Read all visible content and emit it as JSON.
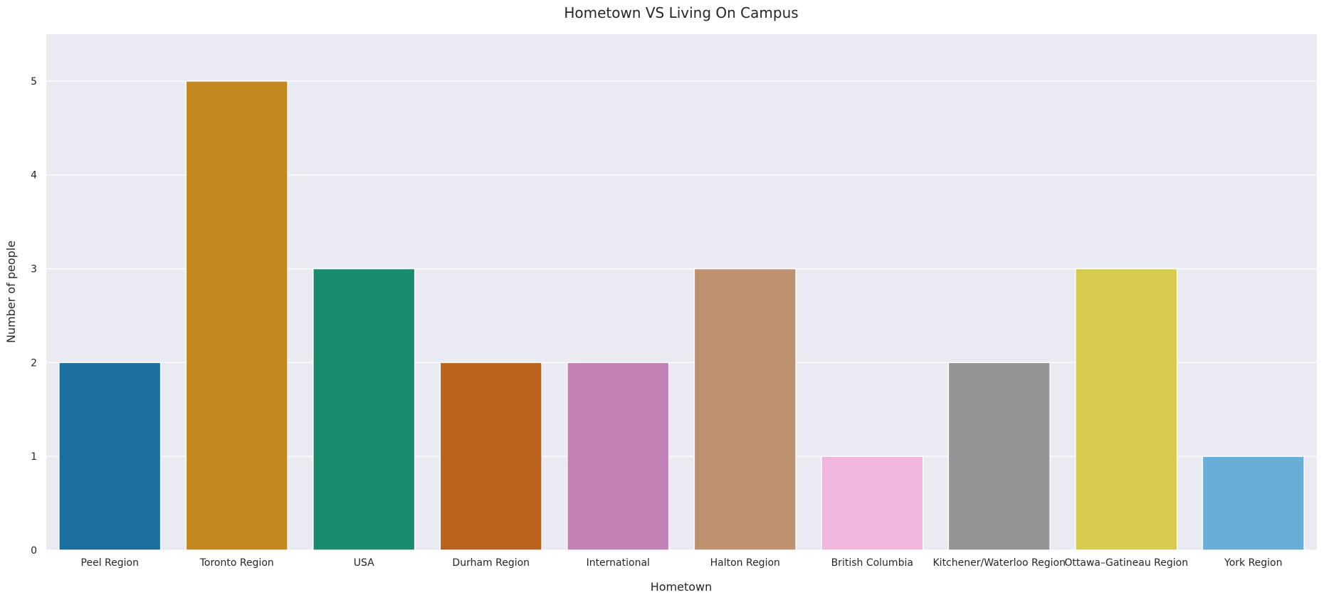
{
  "chart_data": {
    "type": "bar",
    "title": "Hometown VS Living On Campus",
    "xlabel": "Hometown",
    "ylabel": "Number of people",
    "categories": [
      "Peel Region",
      "Toronto Region",
      "USA",
      "Durham Region",
      "International",
      "Halton Region",
      "British Columbia",
      "Kitchener/Waterloo Region",
      "Ottawa–Gatineau Region",
      "York Region"
    ],
    "values": [
      2,
      5,
      3,
      2,
      2,
      3,
      1,
      2,
      3,
      1
    ],
    "colors": [
      "#1a6f9f",
      "#c38820",
      "#178b6b",
      "#b9621e",
      "#c282b5",
      "#be9270",
      "#f0b6dd",
      "#959595",
      "#d6cb4c",
      "#68aed7"
    ],
    "ylim": [
      0,
      5.5
    ],
    "yticks": [
      0,
      1,
      2,
      3,
      4,
      5
    ],
    "grid": true,
    "background": "#eaeaf2",
    "legend": "none"
  }
}
